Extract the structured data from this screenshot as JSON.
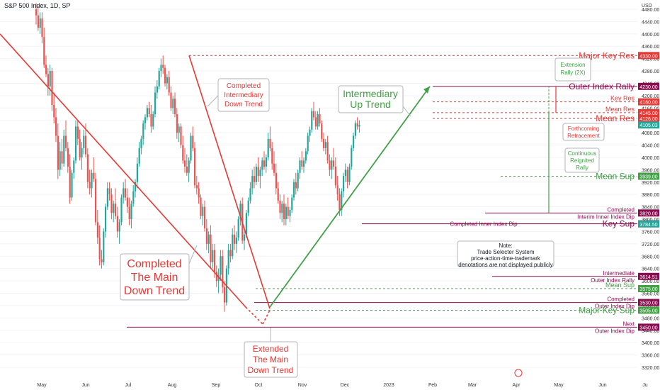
{
  "header": {
    "title": "S&P 500 Index, 1D, SP"
  },
  "y_axis": {
    "unit": "USD",
    "ticks": [
      3320,
      3360,
      3400,
      3440,
      3480,
      3520,
      3560,
      3600,
      3640,
      3680,
      3720,
      3760,
      3800,
      3840,
      3880,
      3920,
      3960,
      4000,
      4040,
      4080,
      4120,
      4160,
      4200,
      4240,
      4280,
      4320,
      4360,
      4400,
      4440,
      4480
    ]
  },
  "x_axis": {
    "labels": [
      {
        "text": "May",
        "cal": 4.0
      },
      {
        "text": "Jun",
        "cal": 35
      },
      {
        "text": "Jul",
        "cal": 65
      },
      {
        "text": "Aug",
        "cal": 96
      },
      {
        "text": "Sep",
        "cal": 127
      },
      {
        "text": "Oct",
        "cal": 157
      },
      {
        "text": "Nov",
        "cal": 188
      },
      {
        "text": "Dec",
        "cal": 218
      },
      {
        "text": "2023",
        "cal": 249
      },
      {
        "text": "Feb",
        "cal": 280
      },
      {
        "text": "Mar",
        "cal": 308
      },
      {
        "text": "Apr",
        "cal": 339
      },
      {
        "text": "May",
        "cal": 369
      },
      {
        "text": "Jun",
        "cal": 400
      },
      {
        "text": "Ju",
        "cal": 430
      }
    ]
  },
  "levels": [
    {
      "name": "major-key-res",
      "label": "Major Key Res",
      "price": 4330,
      "color": "#e53935",
      "dashed": true,
      "x_start_cal": 108,
      "label_size": 12,
      "badge": "4330.00"
    },
    {
      "name": "outer-index-rally",
      "label": "Outer Index Rally",
      "price": 4230,
      "color": "#880e4f",
      "dashed": false,
      "x_start_cal": 280,
      "label_size": 12,
      "badge": "4230.00"
    },
    {
      "name": "key-res",
      "label": "Key Res",
      "price": 4180,
      "color": "#e53935",
      "dashed": true,
      "x_start_cal": 280,
      "label_size": 9,
      "badge": "4180.00"
    },
    {
      "name": "mean-res-1",
      "label": "Mean Res",
      "price": 4145,
      "color": "#e53935",
      "dashed": true,
      "x_start_cal": 280,
      "label_size": 9,
      "badge": "4145.00"
    },
    {
      "name": "mean-res-2",
      "label": "Mean Res",
      "price": 4126,
      "color": "#e53935",
      "dashed": true,
      "x_start_cal": 280,
      "label_size": 12,
      "badge": "4126.00"
    },
    {
      "name": "mean-sup-1",
      "label": "Mean Sup",
      "price": 3939,
      "color": "#43a047",
      "dashed": true,
      "x_start_cal": 328,
      "label_size": 12,
      "badge": "3939.00"
    },
    {
      "name": "key-sup-1",
      "label": "Key Sup",
      "price": 3785,
      "color": "#880e4f",
      "dashed": false,
      "x_start_cal": 230,
      "label_size": 12,
      "badge": "3785.00"
    },
    {
      "name": "mean-sup-2",
      "label": "Mean Sup",
      "price": 3575,
      "color": "#43a047",
      "dashed": true,
      "x_start_cal": 155,
      "label_size": 9,
      "badge": "3575.00"
    },
    {
      "name": "major-key-sup",
      "label": "Major Key Sup",
      "price": 3505,
      "color": "#43a047",
      "dashed": true,
      "x_start_cal": 155,
      "label_size": 12,
      "badge": "3505.00"
    }
  ],
  "extra_lines": [
    {
      "name": "completed-interim-line",
      "price": 3820,
      "color": "#880e4f",
      "x_start_cal": 317,
      "label1": "Completed",
      "label2": "Interim Inner Index Dip",
      "badge": "3820.00"
    },
    {
      "name": "intermediate-outer-line",
      "price": 3614.51,
      "color": "#880e4f",
      "x_start_cal": 322,
      "label1": "Intermediate",
      "label2": "Outer Index Rally",
      "badge": "3614.51"
    },
    {
      "name": "completed-outer-dip-line",
      "price": 3530,
      "color": "#880e4f",
      "x_start_cal": 154,
      "label1": "Completed",
      "label2": "Outer Index Dip",
      "badge": "3530.00"
    },
    {
      "name": "next-outer-dip-line",
      "price": 3450,
      "color": "#880e4f",
      "x_start_cal": 64,
      "label1": "Next",
      "label2": "Outer Index Dip",
      "badge": "3450.00"
    }
  ],
  "extra_badges": [
    {
      "price": 4105.03,
      "text": "4105.03",
      "color": "#26a69a"
    },
    {
      "price": 3784.5,
      "text": "3784.50",
      "color": "#26a69a"
    }
  ],
  "inner_dip_label": "Completed Inner Index Dip",
  "callouts": {
    "completed_main": [
      "Completed",
      "The Main",
      "Down Trend"
    ],
    "extended_main": [
      "Extended",
      "The Main",
      "Down Trend"
    ],
    "completed_intermediary": [
      "Completed",
      "Intermediary",
      "Down Trend"
    ],
    "intermediary_up": [
      "Intermediary",
      "Up Trend"
    ],
    "extension_rally": [
      "Extension",
      "Rally (2X)"
    ],
    "forthcoming": [
      "Forthcoming",
      "Retracement"
    ],
    "continuous": [
      "Continuous",
      "Reignited",
      "Rally"
    ]
  },
  "note": [
    "Note:",
    "Trade Selecter System",
    "price-action-time-trademark",
    "denotations are not displayed publicly"
  ],
  "colors": {
    "up": "#26a69a",
    "down": "#ef5350",
    "red": "#e53935",
    "green": "#43a047",
    "maroon": "#880e4f"
  },
  "chart_data": {
    "type": "candlestick",
    "title": "S&P 500 Index, 1D, SP",
    "ylabel": "USD",
    "ylim": [
      3280,
      4510
    ],
    "candles": [
      [
        0,
        4480,
        4500,
        4430,
        4460
      ],
      [
        1,
        4460,
        4490,
        4410,
        4420
      ],
      [
        2,
        4420,
        4470,
        4400,
        4450
      ],
      [
        3,
        4450,
        4470,
        4370,
        4390
      ],
      [
        4,
        4390,
        4420,
        4290,
        4300
      ],
      [
        5,
        4300,
        4330,
        4260,
        4270
      ],
      [
        6,
        4270,
        4290,
        4200,
        4230
      ],
      [
        7,
        4230,
        4300,
        4200,
        4280
      ],
      [
        8,
        4280,
        4290,
        4150,
        4170
      ],
      [
        9,
        4170,
        4210,
        4110,
        4130
      ],
      [
        10,
        4130,
        4160,
        4050,
        4070
      ],
      [
        11,
        4070,
        4110,
        3930,
        3960
      ],
      [
        12,
        3960,
        4050,
        3940,
        4020
      ],
      [
        13,
        4020,
        4060,
        3960,
        3980
      ],
      [
        14,
        3980,
        4090,
        3970,
        4070
      ],
      [
        15,
        4070,
        4120,
        4020,
        4030
      ],
      [
        16,
        4030,
        4050,
        3950,
        3970
      ],
      [
        17,
        3970,
        4010,
        3850,
        3870
      ],
      [
        18,
        3870,
        3960,
        3860,
        3950
      ],
      [
        19,
        3950,
        4000,
        3930,
        3990
      ],
      [
        20,
        3990,
        4120,
        3980,
        4100
      ],
      [
        21,
        4100,
        4120,
        4040,
        4060
      ],
      [
        22,
        4060,
        4090,
        3990,
        4000
      ],
      [
        23,
        4000,
        4050,
        3960,
        4030
      ],
      [
        24,
        4030,
        4090,
        4010,
        4070
      ],
      [
        25,
        4070,
        4110,
        4000,
        4010
      ],
      [
        26,
        4010,
        4030,
        3900,
        3920
      ],
      [
        27,
        3920,
        3960,
        3880,
        3900
      ],
      [
        28,
        3900,
        3960,
        3870,
        3950
      ],
      [
        29,
        3950,
        4000,
        3920,
        3930
      ],
      [
        30,
        3930,
        3950,
        3780,
        3790
      ],
      [
        31,
        3790,
        3830,
        3720,
        3740
      ],
      [
        32,
        3740,
        3780,
        3650,
        3670
      ],
      [
        33,
        3670,
        3700,
        3640,
        3660
      ],
      [
        34,
        3660,
        3770,
        3650,
        3760
      ],
      [
        35,
        3760,
        3850,
        3740,
        3840
      ],
      [
        36,
        3840,
        3920,
        3830,
        3900
      ],
      [
        37,
        3900,
        3920,
        3860,
        3880
      ],
      [
        38,
        3880,
        3900,
        3800,
        3820
      ],
      [
        39,
        3820,
        3860,
        3790,
        3850
      ],
      [
        40,
        3850,
        3900,
        3800,
        3810
      ],
      [
        41,
        3810,
        3840,
        3740,
        3760
      ],
      [
        42,
        3760,
        3800,
        3720,
        3790
      ],
      [
        43,
        3790,
        3880,
        3780,
        3870
      ],
      [
        44,
        3870,
        3920,
        3850,
        3900
      ],
      [
        45,
        3900,
        3930,
        3860,
        3870
      ],
      [
        46,
        3870,
        3900,
        3820,
        3840
      ],
      [
        47,
        3840,
        3870,
        3780,
        3800
      ],
      [
        48,
        3800,
        3860,
        3770,
        3850
      ],
      [
        49,
        3850,
        3910,
        3840,
        3890
      ],
      [
        50,
        3890,
        3930,
        3870,
        3920
      ],
      [
        51,
        3920,
        4000,
        3900,
        3980
      ],
      [
        52,
        3980,
        4050,
        3970,
        4030
      ],
      [
        53,
        4030,
        4070,
        4010,
        4060
      ],
      [
        54,
        4060,
        4120,
        4040,
        4110
      ],
      [
        55,
        4110,
        4140,
        4090,
        4130
      ],
      [
        56,
        4130,
        4170,
        4120,
        4160
      ],
      [
        57,
        4160,
        4180,
        4130,
        4140
      ],
      [
        58,
        4140,
        4170,
        4080,
        4100
      ],
      [
        59,
        4100,
        4150,
        4090,
        4140
      ],
      [
        60,
        4140,
        4230,
        4130,
        4210
      ],
      [
        61,
        4210,
        4250,
        4190,
        4230
      ],
      [
        62,
        4230,
        4290,
        4220,
        4280
      ],
      [
        63,
        4280,
        4320,
        4260,
        4300
      ],
      [
        64,
        4300,
        4330,
        4270,
        4290
      ],
      [
        65,
        4290,
        4300,
        4230,
        4240
      ],
      [
        66,
        4240,
        4270,
        4220,
        4260
      ],
      [
        67,
        4260,
        4280,
        4200,
        4210
      ],
      [
        68,
        4210,
        4230,
        4150,
        4160
      ],
      [
        69,
        4160,
        4200,
        4140,
        4190
      ],
      [
        70,
        4190,
        4210,
        4130,
        4140
      ],
      [
        71,
        4140,
        4160,
        4060,
        4080
      ],
      [
        72,
        4080,
        4110,
        4050,
        4100
      ],
      [
        73,
        4100,
        4110,
        4030,
        4040
      ],
      [
        74,
        4040,
        4070,
        3980,
        3990
      ],
      [
        75,
        3990,
        4030,
        3950,
        3970
      ],
      [
        76,
        3970,
        4010,
        3940,
        3950
      ],
      [
        77,
        3950,
        4000,
        3920,
        3990
      ],
      [
        78,
        3990,
        4080,
        3980,
        4070
      ],
      [
        79,
        4070,
        4100,
        4020,
        4030
      ],
      [
        80,
        4030,
        4050,
        3900,
        3910
      ],
      [
        81,
        3910,
        3940,
        3880,
        3900
      ],
      [
        82,
        3900,
        3920,
        3850,
        3870
      ],
      [
        83,
        3870,
        3880,
        3800,
        3810
      ],
      [
        84,
        3810,
        3850,
        3780,
        3840
      ],
      [
        85,
        3840,
        3860,
        3760,
        3770
      ],
      [
        86,
        3770,
        3800,
        3700,
        3720
      ],
      [
        87,
        3720,
        3760,
        3690,
        3750
      ],
      [
        88,
        3750,
        3780,
        3640,
        3660
      ],
      [
        89,
        3660,
        3720,
        3640,
        3700
      ],
      [
        90,
        3700,
        3720,
        3610,
        3630
      ],
      [
        91,
        3630,
        3650,
        3580,
        3600
      ],
      [
        92,
        3600,
        3640,
        3560,
        3620
      ],
      [
        93,
        3620,
        3700,
        3600,
        3680
      ],
      [
        94,
        3680,
        3700,
        3560,
        3580
      ],
      [
        95,
        3580,
        3600,
        3500,
        3530
      ],
      [
        96,
        3530,
        3650,
        3520,
        3640
      ],
      [
        97,
        3640,
        3720,
        3620,
        3700
      ],
      [
        98,
        3700,
        3720,
        3660,
        3680
      ],
      [
        99,
        3680,
        3770,
        3670,
        3750
      ],
      [
        100,
        3750,
        3780,
        3700,
        3720
      ],
      [
        101,
        3720,
        3760,
        3690,
        3740
      ],
      [
        102,
        3740,
        3810,
        3730,
        3800
      ],
      [
        103,
        3800,
        3860,
        3780,
        3850
      ],
      [
        104,
        3850,
        3870,
        3720,
        3730
      ],
      [
        105,
        3730,
        3760,
        3700,
        3750
      ],
      [
        106,
        3750,
        3830,
        3740,
        3820
      ],
      [
        107,
        3820,
        3870,
        3810,
        3860
      ],
      [
        108,
        3860,
        3920,
        3850,
        3900
      ],
      [
        109,
        3900,
        3960,
        3880,
        3940
      ],
      [
        110,
        3940,
        3970,
        3900,
        3920
      ],
      [
        111,
        3920,
        3980,
        3910,
        3970
      ],
      [
        112,
        3970,
        4000,
        3920,
        3940
      ],
      [
        113,
        3940,
        3970,
        3900,
        3960
      ],
      [
        114,
        3960,
        4000,
        3940,
        3990
      ],
      [
        115,
        3990,
        4020,
        3960,
        3970
      ],
      [
        116,
        3970,
        4010,
        3950,
        4000
      ],
      [
        117,
        4000,
        4080,
        3990,
        4060
      ],
      [
        118,
        4060,
        4100,
        4020,
        4030
      ],
      [
        119,
        4030,
        4050,
        3960,
        3980
      ],
      [
        120,
        3980,
        4020,
        3940,
        3950
      ],
      [
        121,
        3950,
        3980,
        3880,
        3900
      ],
      [
        122,
        3900,
        3920,
        3850,
        3860
      ],
      [
        123,
        3860,
        3880,
        3800,
        3820
      ],
      [
        124,
        3820,
        3860,
        3790,
        3850
      ],
      [
        125,
        3850,
        3880,
        3780,
        3800
      ],
      [
        126,
        3800,
        3850,
        3780,
        3840
      ],
      [
        127,
        3840,
        3870,
        3800,
        3810
      ],
      [
        128,
        3810,
        3840,
        3790,
        3830
      ],
      [
        129,
        3830,
        3880,
        3820,
        3870
      ],
      [
        130,
        3870,
        3930,
        3860,
        3920
      ],
      [
        131,
        3920,
        3950,
        3880,
        3900
      ],
      [
        132,
        3900,
        3960,
        3890,
        3950
      ],
      [
        133,
        3950,
        4000,
        3930,
        3990
      ],
      [
        134,
        3990,
        4020,
        3960,
        3970
      ],
      [
        135,
        3970,
        4000,
        3950,
        3990
      ],
      [
        136,
        3990,
        4030,
        3980,
        4020
      ],
      [
        137,
        4020,
        4080,
        4010,
        4070
      ],
      [
        138,
        4070,
        4100,
        4050,
        4090
      ],
      [
        139,
        4090,
        4160,
        4080,
        4150
      ],
      [
        140,
        4150,
        4180,
        4120,
        4130
      ],
      [
        141,
        4130,
        4150,
        4090,
        4100
      ],
      [
        142,
        4100,
        4150,
        4090,
        4140
      ],
      [
        143,
        4140,
        4160,
        4100,
        4110
      ],
      [
        144,
        4110,
        4120,
        4050,
        4060
      ],
      [
        145,
        4060,
        4080,
        4020,
        4030
      ],
      [
        146,
        4030,
        4060,
        4010,
        4050
      ],
      [
        147,
        4050,
        4070,
        3980,
        3990
      ],
      [
        148,
        3990,
        4010,
        3940,
        3960
      ],
      [
        149,
        3960,
        4000,
        3930,
        3990
      ],
      [
        150,
        3990,
        4030,
        3960,
        3970
      ],
      [
        151,
        3970,
        4000,
        3900,
        3910
      ],
      [
        152,
        3910,
        3940,
        3860,
        3880
      ],
      [
        153,
        3880,
        3900,
        3810,
        3830
      ],
      [
        154,
        3830,
        3900,
        3810,
        3890
      ],
      [
        155,
        3890,
        3950,
        3870,
        3940
      ],
      [
        156,
        3940,
        3980,
        3920,
        3960
      ],
      [
        157,
        3960,
        3970,
        3900,
        3920
      ],
      [
        158,
        3920,
        3980,
        3910,
        3970
      ],
      [
        159,
        3970,
        4040,
        3960,
        4030
      ],
      [
        160,
        4030,
        4080,
        4020,
        4070
      ],
      [
        161,
        4070,
        4120,
        4060,
        4110
      ],
      [
        162,
        4110,
        4130,
        4090,
        4100
      ],
      [
        163,
        4100,
        4120,
        4080,
        4105.03
      ]
    ]
  }
}
